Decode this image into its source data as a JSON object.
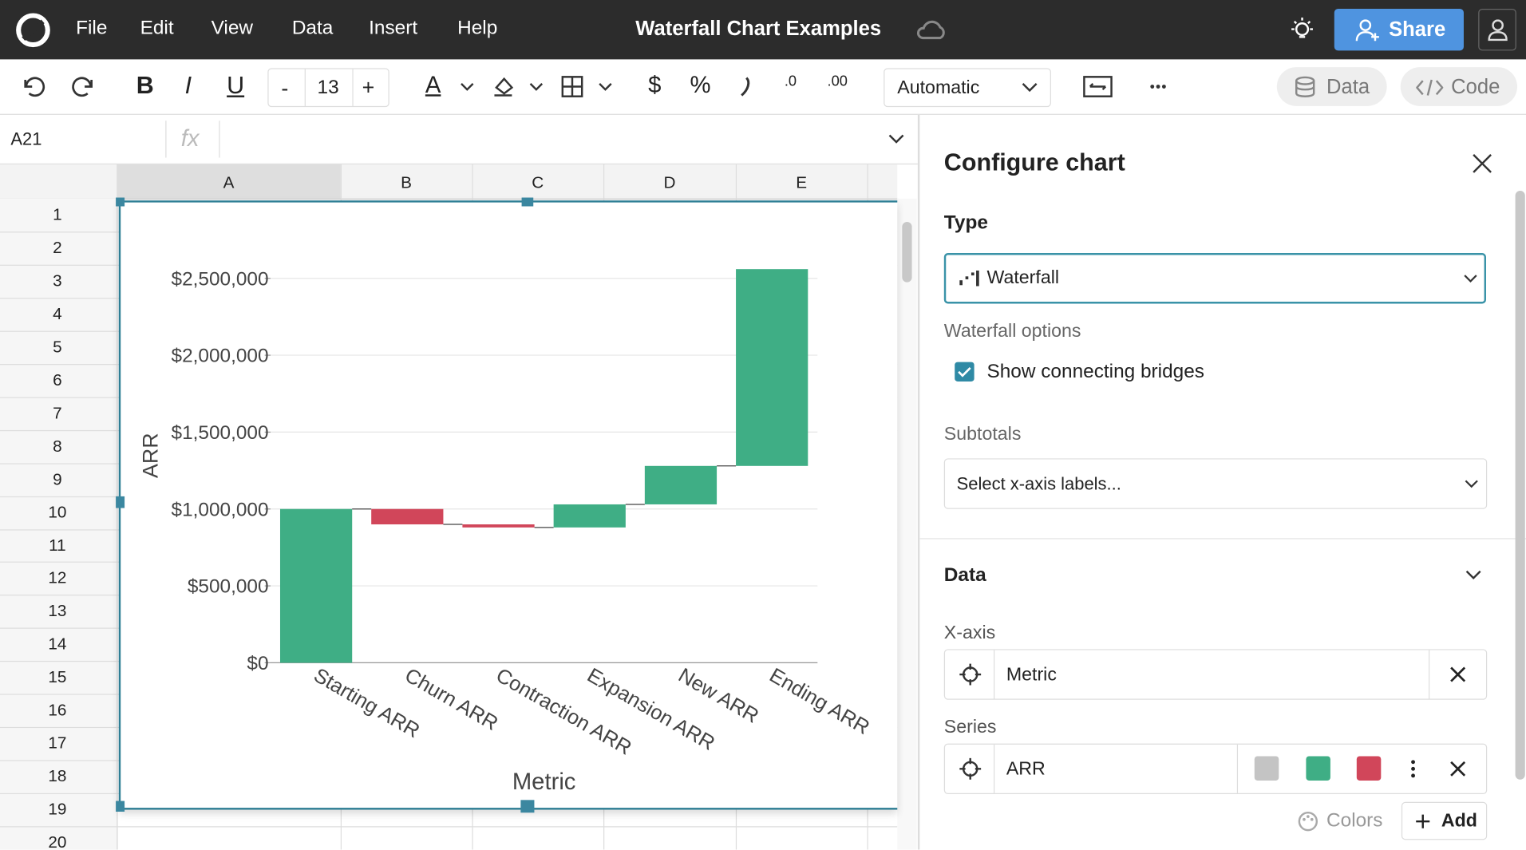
{
  "menu": {
    "items": [
      "File",
      "Edit",
      "View",
      "Data",
      "Insert",
      "Help"
    ],
    "doc_title": "Waterfall Chart Examples",
    "share": "Share"
  },
  "toolbar": {
    "bold": "B",
    "italic": "I",
    "underline": "U",
    "minus": "-",
    "font_size": "13",
    "plus": "+",
    "text_color": "A",
    "currency": "$",
    "percent": "%",
    "decrease_decimals": ".0",
    "increase_decimals": ".00",
    "number_format": "Automatic",
    "data": "Data",
    "code": "Code"
  },
  "formula_bar": {
    "cell": "A21",
    "fx": "fx"
  },
  "sheet": {
    "columns": [
      "A",
      "B",
      "C",
      "D",
      "E"
    ],
    "rows": [
      1,
      2,
      3,
      4,
      5,
      6,
      7,
      8,
      9,
      10,
      11,
      12,
      13,
      14,
      15,
      16,
      17,
      18,
      19,
      20
    ]
  },
  "panel": {
    "title": "Configure chart",
    "type_label": "Type",
    "type_value": "Waterfall",
    "options_label": "Waterfall options",
    "bridges_option": "Show connecting bridges",
    "subtotals_label": "Subtotals",
    "subtotals_placeholder": "Select x-axis labels...",
    "data_section": "Data",
    "xaxis_label": "X-axis",
    "xaxis_value": "Metric",
    "series_label": "Series",
    "series_value": "ARR",
    "colors": "Colors",
    "add": "Add"
  },
  "chart_data": {
    "type": "waterfall",
    "x_label": "Metric",
    "y_label": "ARR",
    "categories": [
      "Starting ARR",
      "Churn ARR",
      "Contraction ARR",
      "Expansion ARR",
      "New ARR",
      "Ending ARR"
    ],
    "series": [
      {
        "name": "ARR",
        "values": [
          1000000,
          -100000,
          -20000,
          150000,
          250000,
          1280000
        ]
      }
    ],
    "colors": {
      "total": "#c4c4c4",
      "increase": "#3fae85",
      "decrease": "#d1465a"
    },
    "bridges": true,
    "grid": true,
    "ylim": [
      0,
      2750000
    ],
    "yticks": [
      {
        "value": 0,
        "label": "$0"
      },
      {
        "value": 500000,
        "label": "$500,000"
      },
      {
        "value": 1000000,
        "label": "$1,000,000"
      },
      {
        "value": 1500000,
        "label": "$1,500,000"
      },
      {
        "value": 2000000,
        "label": "$2,000,000"
      },
      {
        "value": 2500000,
        "label": "$2,500,000"
      }
    ]
  }
}
